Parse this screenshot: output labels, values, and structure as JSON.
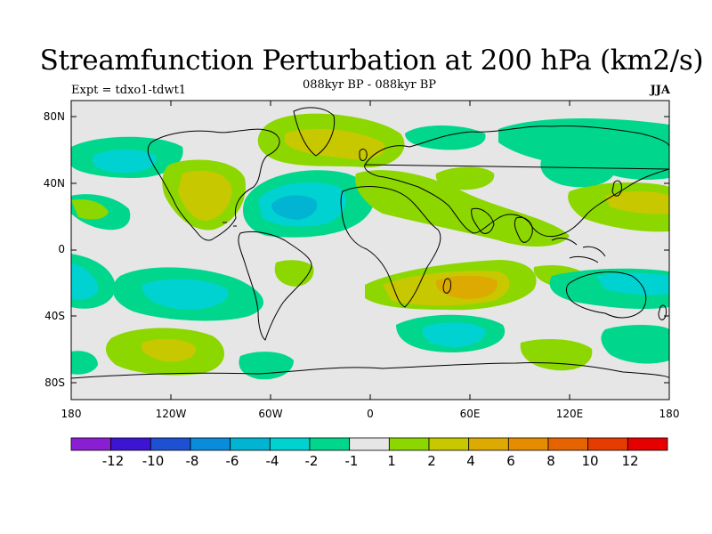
{
  "title": "Streamfunction Perturbation at 200 hPa (km2/s)",
  "experiment": "Expt = tdxo1-tdwt1",
  "period": "088kyr BP - 088kyr BP",
  "season": "JJA",
  "y_ticks": [
    "80N",
    "40N",
    "0",
    "40S",
    "80S"
  ],
  "x_ticks": [
    "180",
    "120W",
    "60W",
    "0",
    "60E",
    "120E",
    "180"
  ],
  "colorbar": {
    "labels": [
      "-12",
      "-10",
      "-8",
      "-6",
      "-4",
      "-2",
      "-1",
      "1",
      "2",
      "4",
      "6",
      "8",
      "10",
      "12"
    ],
    "colors": [
      "#8a1ed2",
      "#3c14d2",
      "#1e50d2",
      "#0a8cdc",
      "#00b4d2",
      "#00d2d2",
      "#00d78c",
      "#e6e6e6",
      "#8cd700",
      "#c8c800",
      "#dcaa00",
      "#e68c00",
      "#e66400",
      "#e63c00",
      "#e60000"
    ]
  },
  "map_fields": {
    "neutral_color": "#e6e6e6",
    "palette": {
      "blue_mid": "#00b4d2",
      "cyan": "#00d2d2",
      "teal": "#00d78c",
      "lime": "#8cd700",
      "olive": "#c8c800",
      "orange": "#dcaa00",
      "dark_orange": "#e68c00"
    }
  }
}
